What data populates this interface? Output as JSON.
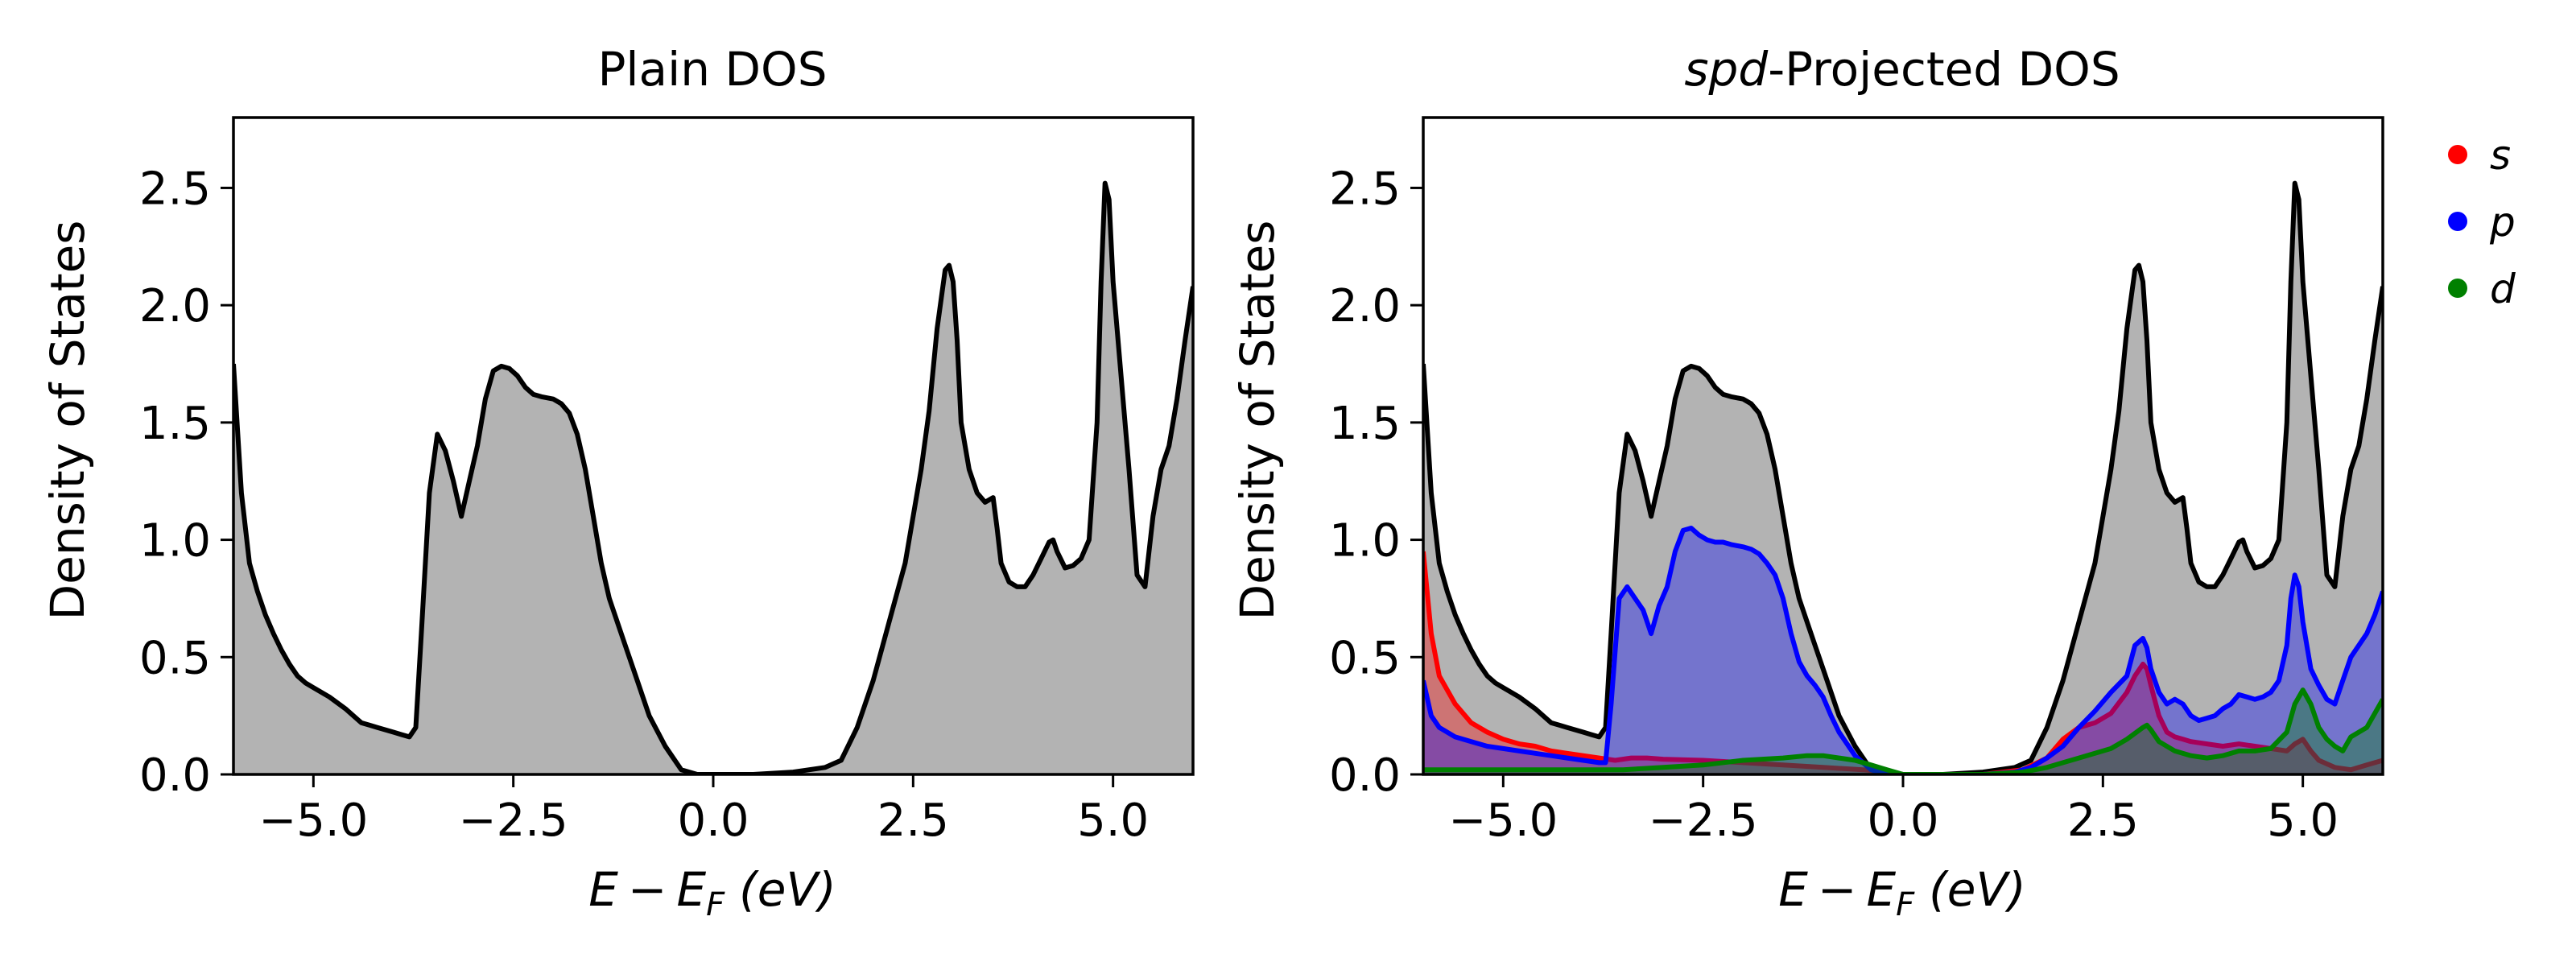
{
  "chart_data": [
    {
      "type": "area",
      "title": "Plain DOS",
      "xlabel_parts": {
        "e": "E",
        "minus": "−",
        "ef": "E",
        "sub": "F",
        "unit": "(eV)"
      },
      "ylabel": "Density of States",
      "xlim": [
        -6.0,
        6.0
      ],
      "ylim": [
        0.0,
        2.8
      ],
      "xticks": [
        -5.0,
        -2.5,
        0.0,
        2.5,
        5.0
      ],
      "xtick_labels": [
        "−5.0",
        "−2.5",
        "0.0",
        "2.5",
        "5.0"
      ],
      "yticks": [
        0.0,
        0.5,
        1.0,
        1.5,
        2.0,
        2.5
      ],
      "ytick_labels": [
        "0.0",
        "0.5",
        "1.0",
        "1.5",
        "2.0",
        "2.5"
      ],
      "grid": false,
      "series": [
        {
          "color": "#000000",
          "fill": "#b3b3b3",
          "x": [
            -6.0,
            -5.9,
            -5.8,
            -5.7,
            -5.6,
            -5.5,
            -5.4,
            -5.3,
            -5.2,
            -5.1,
            -5.0,
            -4.8,
            -4.6,
            -4.4,
            -4.3,
            -4.2,
            -4.0,
            -3.9,
            -3.8,
            -3.72,
            -3.65,
            -3.55,
            -3.45,
            -3.35,
            -3.25,
            -3.15,
            -3.05,
            -2.95,
            -2.85,
            -2.75,
            -2.65,
            -2.55,
            -2.45,
            -2.35,
            -2.25,
            -2.15,
            -2.0,
            -1.9,
            -1.8,
            -1.7,
            -1.6,
            -1.5,
            -1.4,
            -1.3,
            -1.2,
            -1.1,
            -1.0,
            -0.9,
            -0.8,
            -0.6,
            -0.4,
            -0.2,
            -0.05,
            0.0,
            0.5,
            1.0,
            1.4,
            1.6,
            1.8,
            2.0,
            2.2,
            2.4,
            2.6,
            2.7,
            2.8,
            2.9,
            2.95,
            3.0,
            3.05,
            3.1,
            3.2,
            3.3,
            3.4,
            3.5,
            3.55,
            3.6,
            3.7,
            3.8,
            3.9,
            4.0,
            4.1,
            4.2,
            4.25,
            4.3,
            4.4,
            4.5,
            4.6,
            4.7,
            4.8,
            4.85,
            4.9,
            4.95,
            5.0,
            5.1,
            5.2,
            5.3,
            5.4,
            5.5,
            5.6,
            5.7,
            5.8,
            5.9,
            6.0
          ],
          "y": [
            1.75,
            1.2,
            0.9,
            0.78,
            0.68,
            0.6,
            0.53,
            0.47,
            0.42,
            0.39,
            0.37,
            0.33,
            0.28,
            0.22,
            0.21,
            0.2,
            0.18,
            0.17,
            0.16,
            0.2,
            0.6,
            1.2,
            1.45,
            1.38,
            1.25,
            1.1,
            1.25,
            1.4,
            1.6,
            1.72,
            1.74,
            1.73,
            1.7,
            1.65,
            1.62,
            1.61,
            1.6,
            1.58,
            1.54,
            1.45,
            1.3,
            1.1,
            0.9,
            0.75,
            0.65,
            0.55,
            0.45,
            0.35,
            0.25,
            0.12,
            0.02,
            0.0,
            0.0,
            0.0,
            0.0,
            0.01,
            0.03,
            0.06,
            0.2,
            0.4,
            0.65,
            0.9,
            1.3,
            1.55,
            1.9,
            2.15,
            2.17,
            2.1,
            1.85,
            1.5,
            1.3,
            1.2,
            1.16,
            1.18,
            1.05,
            0.9,
            0.82,
            0.8,
            0.8,
            0.85,
            0.92,
            0.99,
            1.0,
            0.95,
            0.88,
            0.89,
            0.92,
            1.0,
            1.5,
            2.1,
            2.52,
            2.45,
            2.1,
            1.7,
            1.3,
            0.85,
            0.8,
            1.1,
            1.3,
            1.4,
            1.6,
            1.85,
            2.08
          ]
        }
      ]
    },
    {
      "type": "area",
      "title_parts": {
        "italic": "spd",
        "rest": "-Projected DOS"
      },
      "xlabel_parts": {
        "e": "E",
        "minus": "−",
        "ef": "E",
        "sub": "F",
        "unit": "(eV)"
      },
      "ylabel": "Density of States",
      "xlim": [
        -6.0,
        6.0
      ],
      "ylim": [
        0.0,
        2.8
      ],
      "xticks": [
        -5.0,
        -2.5,
        0.0,
        2.5,
        5.0
      ],
      "xtick_labels": [
        "−5.0",
        "−2.5",
        "0.0",
        "2.5",
        "5.0"
      ],
      "yticks": [
        0.0,
        0.5,
        1.0,
        1.5,
        2.0,
        2.5
      ],
      "ytick_labels": [
        "0.0",
        "0.5",
        "1.0",
        "1.5",
        "2.0",
        "2.5"
      ],
      "grid": false,
      "legend_position": "outside-right",
      "series": [
        {
          "color": "#000000",
          "fill": "#b3b3b3",
          "fill_opacity": 1.0,
          "legend": false,
          "x": [
            -6.0,
            -5.9,
            -5.8,
            -5.7,
            -5.6,
            -5.5,
            -5.4,
            -5.3,
            -5.2,
            -5.1,
            -5.0,
            -4.8,
            -4.6,
            -4.4,
            -4.3,
            -4.2,
            -4.0,
            -3.9,
            -3.8,
            -3.72,
            -3.65,
            -3.55,
            -3.45,
            -3.35,
            -3.25,
            -3.15,
            -3.05,
            -2.95,
            -2.85,
            -2.75,
            -2.65,
            -2.55,
            -2.45,
            -2.35,
            -2.25,
            -2.15,
            -2.0,
            -1.9,
            -1.8,
            -1.7,
            -1.6,
            -1.5,
            -1.4,
            -1.3,
            -1.2,
            -1.1,
            -1.0,
            -0.9,
            -0.8,
            -0.6,
            -0.4,
            -0.2,
            -0.05,
            0.0,
            0.5,
            1.0,
            1.4,
            1.6,
            1.8,
            2.0,
            2.2,
            2.4,
            2.6,
            2.7,
            2.8,
            2.9,
            2.95,
            3.0,
            3.05,
            3.1,
            3.2,
            3.3,
            3.4,
            3.5,
            3.55,
            3.6,
            3.7,
            3.8,
            3.9,
            4.0,
            4.1,
            4.2,
            4.25,
            4.3,
            4.4,
            4.5,
            4.6,
            4.7,
            4.8,
            4.85,
            4.9,
            4.95,
            5.0,
            5.1,
            5.2,
            5.3,
            5.4,
            5.5,
            5.6,
            5.7,
            5.8,
            5.9,
            6.0
          ],
          "y": [
            1.75,
            1.2,
            0.9,
            0.78,
            0.68,
            0.6,
            0.53,
            0.47,
            0.42,
            0.39,
            0.37,
            0.33,
            0.28,
            0.22,
            0.21,
            0.2,
            0.18,
            0.17,
            0.16,
            0.2,
            0.6,
            1.2,
            1.45,
            1.38,
            1.25,
            1.1,
            1.25,
            1.4,
            1.6,
            1.72,
            1.74,
            1.73,
            1.7,
            1.65,
            1.62,
            1.61,
            1.6,
            1.58,
            1.54,
            1.45,
            1.3,
            1.1,
            0.9,
            0.75,
            0.65,
            0.55,
            0.45,
            0.35,
            0.25,
            0.12,
            0.02,
            0.0,
            0.0,
            0.0,
            0.0,
            0.01,
            0.03,
            0.06,
            0.2,
            0.4,
            0.65,
            0.9,
            1.3,
            1.55,
            1.9,
            2.15,
            2.17,
            2.1,
            1.85,
            1.5,
            1.3,
            1.2,
            1.16,
            1.18,
            1.05,
            0.9,
            0.82,
            0.8,
            0.8,
            0.85,
            0.92,
            0.99,
            1.0,
            0.95,
            0.88,
            0.89,
            0.92,
            1.0,
            1.5,
            2.1,
            2.52,
            2.45,
            2.1,
            1.7,
            1.3,
            0.85,
            0.8,
            1.1,
            1.3,
            1.4,
            1.6,
            1.85,
            2.08
          ]
        },
        {
          "name": "s",
          "color": "#ff0000",
          "fill": "#ff0000",
          "fill_opacity": 0.35,
          "legend": true,
          "x": [
            -6.0,
            -5.9,
            -5.8,
            -5.6,
            -5.4,
            -5.2,
            -5.0,
            -4.8,
            -4.6,
            -4.4,
            -4.2,
            -4.0,
            -3.8,
            -3.6,
            -3.4,
            -3.2,
            -3.0,
            -2.5,
            -2.0,
            -1.5,
            -1.0,
            -0.5,
            -0.2,
            0.0,
            0.5,
            1.0,
            1.5,
            1.8,
            2.0,
            2.2,
            2.4,
            2.6,
            2.8,
            2.9,
            3.0,
            3.05,
            3.1,
            3.2,
            3.3,
            3.4,
            3.5,
            3.6,
            3.8,
            4.0,
            4.2,
            4.4,
            4.6,
            4.8,
            4.9,
            5.0,
            5.1,
            5.2,
            5.4,
            5.6,
            5.8,
            6.0
          ],
          "y": [
            0.95,
            0.6,
            0.42,
            0.3,
            0.22,
            0.18,
            0.15,
            0.13,
            0.12,
            0.1,
            0.09,
            0.08,
            0.07,
            0.06,
            0.07,
            0.07,
            0.065,
            0.06,
            0.05,
            0.04,
            0.03,
            0.02,
            0.01,
            0.0,
            0.0,
            0.0,
            0.02,
            0.07,
            0.15,
            0.2,
            0.22,
            0.26,
            0.35,
            0.42,
            0.47,
            0.45,
            0.38,
            0.25,
            0.18,
            0.16,
            0.15,
            0.14,
            0.13,
            0.12,
            0.13,
            0.12,
            0.11,
            0.1,
            0.13,
            0.15,
            0.1,
            0.06,
            0.03,
            0.02,
            0.04,
            0.06
          ]
        },
        {
          "name": "p",
          "color": "#0000ff",
          "fill": "#0000ff",
          "fill_opacity": 0.35,
          "legend": true,
          "x": [
            -6.0,
            -5.9,
            -5.8,
            -5.6,
            -5.4,
            -5.2,
            -5.0,
            -4.8,
            -4.6,
            -4.4,
            -4.2,
            -4.0,
            -3.8,
            -3.72,
            -3.65,
            -3.55,
            -3.45,
            -3.35,
            -3.25,
            -3.15,
            -3.05,
            -2.95,
            -2.85,
            -2.75,
            -2.65,
            -2.55,
            -2.45,
            -2.35,
            -2.25,
            -2.15,
            -2.0,
            -1.9,
            -1.8,
            -1.7,
            -1.6,
            -1.5,
            -1.4,
            -1.3,
            -1.2,
            -1.1,
            -1.0,
            -0.9,
            -0.8,
            -0.6,
            -0.4,
            -0.2,
            -0.05,
            0.0,
            0.5,
            1.0,
            1.4,
            1.6,
            1.8,
            2.0,
            2.2,
            2.4,
            2.6,
            2.8,
            2.9,
            3.0,
            3.05,
            3.1,
            3.2,
            3.3,
            3.4,
            3.5,
            3.6,
            3.7,
            3.8,
            3.9,
            4.0,
            4.1,
            4.2,
            4.3,
            4.4,
            4.5,
            4.6,
            4.7,
            4.8,
            4.85,
            4.9,
            4.95,
            5.0,
            5.1,
            5.2,
            5.3,
            5.4,
            5.5,
            5.6,
            5.7,
            5.8,
            5.9,
            6.0
          ],
          "y": [
            0.4,
            0.25,
            0.2,
            0.16,
            0.14,
            0.12,
            0.11,
            0.1,
            0.09,
            0.08,
            0.07,
            0.06,
            0.05,
            0.05,
            0.3,
            0.75,
            0.8,
            0.75,
            0.7,
            0.6,
            0.72,
            0.8,
            0.95,
            1.04,
            1.05,
            1.02,
            1.0,
            0.99,
            0.99,
            0.98,
            0.97,
            0.96,
            0.94,
            0.9,
            0.85,
            0.75,
            0.6,
            0.48,
            0.42,
            0.38,
            0.33,
            0.25,
            0.18,
            0.08,
            0.02,
            0.0,
            0.0,
            0.0,
            0.0,
            0.0,
            0.01,
            0.03,
            0.07,
            0.12,
            0.2,
            0.27,
            0.35,
            0.42,
            0.55,
            0.58,
            0.54,
            0.45,
            0.35,
            0.3,
            0.32,
            0.3,
            0.25,
            0.23,
            0.24,
            0.25,
            0.28,
            0.3,
            0.34,
            0.33,
            0.32,
            0.33,
            0.35,
            0.4,
            0.55,
            0.75,
            0.85,
            0.8,
            0.65,
            0.45,
            0.38,
            0.32,
            0.3,
            0.4,
            0.5,
            0.55,
            0.6,
            0.68,
            0.78
          ]
        },
        {
          "name": "d",
          "color": "#008000",
          "fill": "#008000",
          "fill_opacity": 0.35,
          "legend": true,
          "x": [
            -6.0,
            -5.5,
            -5.0,
            -4.5,
            -4.0,
            -3.5,
            -3.0,
            -2.5,
            -2.0,
            -1.5,
            -1.2,
            -1.0,
            -0.8,
            -0.6,
            -0.4,
            -0.2,
            0.0,
            0.5,
            1.0,
            1.5,
            1.8,
            2.0,
            2.2,
            2.4,
            2.6,
            2.8,
            3.0,
            3.05,
            3.1,
            3.2,
            3.4,
            3.6,
            3.8,
            4.0,
            4.2,
            4.4,
            4.6,
            4.8,
            4.9,
            5.0,
            5.1,
            5.2,
            5.3,
            5.4,
            5.5,
            5.6,
            5.8,
            6.0
          ],
          "y": [
            0.02,
            0.02,
            0.02,
            0.02,
            0.02,
            0.02,
            0.03,
            0.04,
            0.06,
            0.07,
            0.08,
            0.08,
            0.07,
            0.06,
            0.04,
            0.02,
            0.0,
            0.0,
            0.0,
            0.01,
            0.03,
            0.05,
            0.07,
            0.09,
            0.11,
            0.15,
            0.2,
            0.21,
            0.19,
            0.14,
            0.1,
            0.08,
            0.07,
            0.08,
            0.1,
            0.1,
            0.11,
            0.18,
            0.3,
            0.36,
            0.3,
            0.2,
            0.15,
            0.12,
            0.1,
            0.16,
            0.2,
            0.32
          ]
        }
      ]
    }
  ]
}
